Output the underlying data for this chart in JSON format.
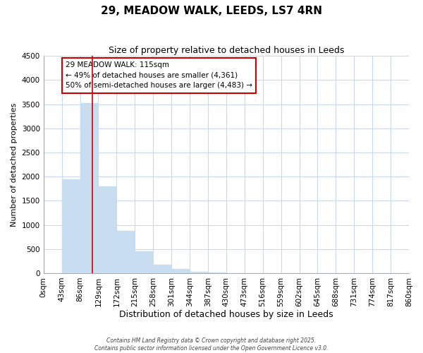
{
  "title": "29, MEADOW WALK, LEEDS, LS7 4RN",
  "subtitle": "Size of property relative to detached houses in Leeds",
  "xlabel": "Distribution of detached houses by size in Leeds",
  "ylabel": "Number of detached properties",
  "bar_color": "#c8ddf0",
  "bar_edge_color": "#c8ddf0",
  "bin_labels": [
    "0sqm",
    "43sqm",
    "86sqm",
    "129sqm",
    "172sqm",
    "215sqm",
    "258sqm",
    "301sqm",
    "344sqm",
    "387sqm",
    "430sqm",
    "473sqm",
    "516sqm",
    "559sqm",
    "602sqm",
    "645sqm",
    "688sqm",
    "731sqm",
    "774sqm",
    "817sqm",
    "860sqm"
  ],
  "bar_heights": [
    0,
    1950,
    3520,
    1800,
    870,
    450,
    175,
    80,
    30,
    15,
    5,
    3,
    2,
    1,
    1,
    0,
    0,
    0,
    0,
    0
  ],
  "ylim": [
    0,
    4500
  ],
  "yticks": [
    0,
    500,
    1000,
    1500,
    2000,
    2500,
    3000,
    3500,
    4000,
    4500
  ],
  "vline_x": 2.69,
  "vline_color": "#cc0000",
  "annotation_text": "29 MEADOW WALK: 115sqm\n← 49% of detached houses are smaller (4,361)\n50% of semi-detached houses are larger (4,483) →",
  "annotation_box_color": "#cc0000",
  "footer_line1": "Contains HM Land Registry data © Crown copyright and database right 2025.",
  "footer_line2": "Contains public sector information licensed under the Open Government Licence v3.0.",
  "background_color": "#ffffff",
  "grid_color": "#c8d8f0",
  "title_fontsize": 11,
  "subtitle_fontsize": 9,
  "xlabel_fontsize": 9,
  "ylabel_fontsize": 8,
  "tick_fontsize": 7.5
}
